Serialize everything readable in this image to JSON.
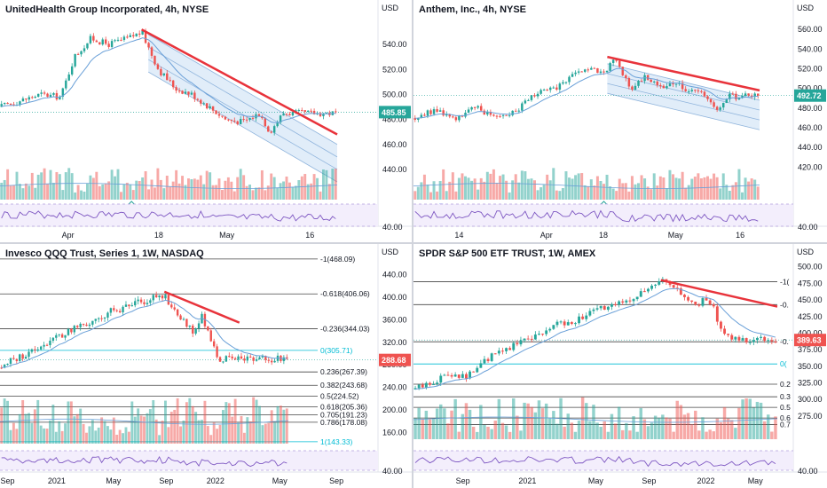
{
  "colors": {
    "up": "#26a69a",
    "down": "#ef5350",
    "trend": "#e8333b",
    "ma": "#6aa0d8",
    "rsi": "#7e57c2",
    "fib": "#131722",
    "fibCyan": "#00bcd4"
  },
  "chart_data": [
    {
      "type": "candlestick",
      "title": "UnitedHealth Group Incorporated, 4h, NYSE",
      "currency": "USD",
      "last_price": "485.85",
      "ylim": [
        430,
        560
      ],
      "y_ticks": [
        "540.00",
        "520.00",
        "500.00",
        "480.00",
        "460.00",
        "440.00"
      ],
      "y_tick_values": [
        540,
        520,
        500,
        480,
        460,
        440
      ],
      "x_labels": [
        "Apr",
        "18",
        "May",
        "16"
      ],
      "x_label_at": [
        0.18,
        0.42,
        0.6,
        0.82
      ],
      "rsi_tick": "40.00",
      "events": [
        "E"
      ],
      "event_at": [
        0.39
      ],
      "path": [
        [
          0,
          490
        ],
        [
          0.06,
          495
        ],
        [
          0.12,
          500
        ],
        [
          0.18,
          498
        ],
        [
          0.22,
          530
        ],
        [
          0.27,
          545
        ],
        [
          0.32,
          540
        ],
        [
          0.38,
          545
        ],
        [
          0.42,
          550
        ],
        [
          0.47,
          520
        ],
        [
          0.52,
          505
        ],
        [
          0.57,
          500
        ],
        [
          0.62,
          490
        ],
        [
          0.67,
          480
        ],
        [
          0.72,
          478
        ],
        [
          0.77,
          485
        ],
        [
          0.8,
          470
        ],
        [
          0.84,
          485
        ]
      ],
      "trendline": [
        [
          0.42,
          552
        ],
        [
          1.0,
          468
        ]
      ],
      "channel": {
        "from": [
          0.44,
          548
        ],
        "to": [
          1.0,
          460
        ],
        "offsets": [
          0,
          -10,
          -20,
          -30
        ]
      }
    },
    {
      "type": "candlestick",
      "title": "Anthem, Inc., 4h, NYSE",
      "currency": "USD",
      "last_price": "492.72",
      "ylim": [
        405,
        570
      ],
      "y_ticks": [
        "560.00",
        "540.00",
        "520.00",
        "500.00",
        "480.00",
        "460.00",
        "440.00",
        "420.00"
      ],
      "y_tick_values": [
        560,
        540,
        520,
        500,
        480,
        460,
        440,
        420
      ],
      "x_labels": [
        "14",
        "Apr",
        "18",
        "May",
        "16"
      ],
      "x_label_at": [
        0.12,
        0.35,
        0.5,
        0.69,
        0.86
      ],
      "rsi_tick": "40.00",
      "events": [
        "D",
        "E"
      ],
      "event_at": [
        0.08,
        0.55
      ],
      "path": [
        [
          0,
          470
        ],
        [
          0.06,
          478
        ],
        [
          0.12,
          470
        ],
        [
          0.18,
          480
        ],
        [
          0.24,
          472
        ],
        [
          0.3,
          478
        ],
        [
          0.35,
          495
        ],
        [
          0.4,
          498
        ],
        [
          0.45,
          510
        ],
        [
          0.5,
          520
        ],
        [
          0.55,
          515
        ],
        [
          0.58,
          530
        ],
        [
          0.63,
          500
        ],
        [
          0.67,
          512
        ],
        [
          0.72,
          502
        ],
        [
          0.76,
          505
        ],
        [
          0.8,
          498
        ],
        [
          0.85,
          492
        ],
        [
          0.88,
          475
        ],
        [
          0.91,
          492
        ]
      ],
      "trendline": [
        [
          0.56,
          532
        ],
        [
          1.0,
          498
        ]
      ],
      "channel": {
        "from": [
          0.56,
          525
        ],
        "to": [
          1.0,
          488
        ],
        "offsets": [
          0,
          -10,
          -20,
          -30
        ]
      }
    },
    {
      "type": "candlestick",
      "title": "Invesco QQQ Trust, Series 1, 1W, NASDAQ",
      "currency": "USD",
      "last_price": "288.68",
      "ylim": [
        140,
        460
      ],
      "y_ticks": [
        "440.00",
        "400.00",
        "360.00",
        "320.00",
        "280.00",
        "240.00",
        "200.00",
        "160.00"
      ],
      "y_tick_values": [
        440,
        400,
        360,
        320,
        280,
        240,
        200,
        160
      ],
      "x_labels": [
        "Sep",
        "2021",
        "May",
        "Sep",
        "2022",
        "May",
        "Sep"
      ],
      "x_label_at": [
        0.02,
        0.15,
        0.3,
        0.44,
        0.57,
        0.74,
        0.89
      ],
      "rsi_tick": "40.00",
      "fib_levels": [
        {
          "label": "-1(468.09)",
          "value": 468.09
        },
        {
          "label": "-0.618(406.06)",
          "value": 406.06
        },
        {
          "label": "-0.236(344.03)",
          "value": 344.03
        },
        {
          "label": "0(305.71)",
          "value": 305.71
        },
        {
          "label": "0.236(267.39)",
          "value": 267.39
        },
        {
          "label": "0.382(243.68)",
          "value": 243.68
        },
        {
          "label": "0.5(224.52)",
          "value": 224.52
        },
        {
          "label": "0.618(205.36)",
          "value": 205.36
        },
        {
          "label": "0.705(191.23)",
          "value": 191.23
        },
        {
          "label": "0.786(178.08)",
          "value": 178.08
        },
        {
          "label": "1(143.33)",
          "value": 143.33
        }
      ],
      "path": [
        [
          0,
          275
        ],
        [
          0.05,
          290
        ],
        [
          0.1,
          300
        ],
        [
          0.16,
          320
        ],
        [
          0.22,
          335
        ],
        [
          0.28,
          350
        ],
        [
          0.33,
          355
        ],
        [
          0.38,
          375
        ],
        [
          0.43,
          380
        ],
        [
          0.48,
          390
        ],
        [
          0.53,
          400
        ],
        [
          0.57,
          405
        ],
        [
          0.6,
          380
        ],
        [
          0.63,
          360
        ],
        [
          0.67,
          340
        ],
        [
          0.7,
          365
        ],
        [
          0.73,
          330
        ],
        [
          0.75,
          300
        ],
        [
          0.76,
          290
        ]
      ],
      "trendline": [
        [
          0.57,
          410
        ],
        [
          0.83,
          355
        ]
      ]
    },
    {
      "type": "candlestick",
      "title": "SPDR S&P 500 ETF TRUST, 1W, AMEX",
      "currency": "USD",
      "last_price": "389.63",
      "ylim": [
        240,
        505
      ],
      "y_ticks": [
        "500.00",
        "475.00",
        "450.00",
        "425.00",
        "400.00",
        "375.00",
        "350.00",
        "325.00",
        "300.00",
        "275.00"
      ],
      "y_tick_values": [
        500,
        475,
        450,
        425,
        400,
        375,
        350,
        325,
        300,
        275
      ],
      "x_labels": [
        "Sep",
        "2021",
        "May",
        "Sep",
        "2022",
        "May"
      ],
      "x_label_at": [
        0.13,
        0.3,
        0.48,
        0.62,
        0.77,
        0.9
      ],
      "rsi_tick": "40.00",
      "fib_levels": [
        {
          "label": "-1(",
          "value": 477.5
        },
        {
          "label": "-0.",
          "value": 443
        },
        {
          "label": "-0.",
          "value": 387
        },
        {
          "label": "0(",
          "value": 353.5
        },
        {
          "label": "0.2",
          "value": 323
        },
        {
          "label": "0.3",
          "value": 304
        },
        {
          "label": "0.5",
          "value": 288
        },
        {
          "label": "0.6",
          "value": 272
        },
        {
          "label": "0.7",
          "value": 262
        }
      ],
      "path": [
        [
          0,
          315
        ],
        [
          0.05,
          325
        ],
        [
          0.1,
          340
        ],
        [
          0.15,
          335
        ],
        [
          0.2,
          360
        ],
        [
          0.25,
          375
        ],
        [
          0.3,
          390
        ],
        [
          0.35,
          400
        ],
        [
          0.4,
          415
        ],
        [
          0.45,
          420
        ],
        [
          0.5,
          435
        ],
        [
          0.55,
          440
        ],
        [
          0.6,
          455
        ],
        [
          0.65,
          465
        ],
        [
          0.68,
          478
        ],
        [
          0.72,
          465
        ],
        [
          0.75,
          450
        ],
        [
          0.78,
          440
        ],
        [
          0.81,
          455
        ],
        [
          0.84,
          415
        ],
        [
          0.86,
          395
        ],
        [
          0.87,
          390
        ]
      ],
      "trendline": [
        [
          0.68,
          480
        ],
        [
          1.0,
          440
        ]
      ]
    }
  ]
}
